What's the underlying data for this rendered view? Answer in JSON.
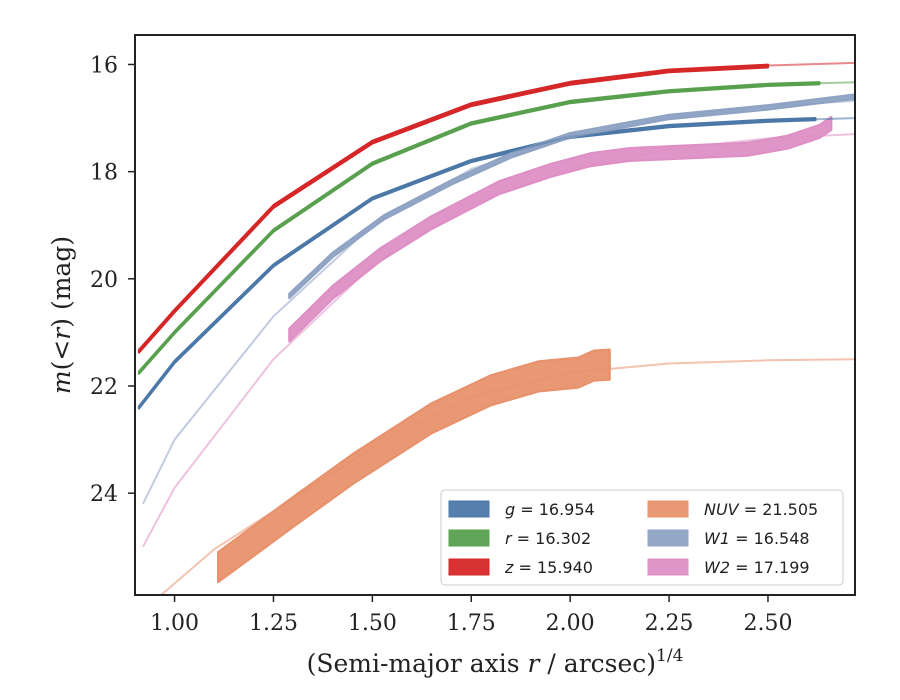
{
  "chart_data": {
    "type": "line",
    "title": "",
    "xlabel": "(Semi-major axis r / arcsec)",
    "xlabel_parts": {
      "before": "(Semi-major axis ",
      "var": "r",
      "after": " / arcsec)",
      "sup": "1/4"
    },
    "ylabel": "m(<r) (mag)",
    "ylabel_parts": {
      "var": "m",
      "paren": "(<",
      "var2": "r",
      "close": ")",
      "unit": " (mag)"
    },
    "xlim": [
      0.9,
      2.72
    ],
    "ylim": [
      25.9,
      15.45
    ],
    "y_inverted": true,
    "xticks": [
      1.0,
      1.25,
      1.5,
      1.75,
      2.0,
      2.25,
      2.5
    ],
    "xtick_labels": [
      "1.00",
      "1.25",
      "1.50",
      "1.75",
      "2.00",
      "2.25",
      "2.50"
    ],
    "yticks": [
      16,
      18,
      20,
      22,
      24
    ],
    "ytick_labels": [
      "16",
      "18",
      "20",
      "22",
      "24"
    ],
    "grid": false,
    "legend_placement": "lower-right",
    "series": [
      {
        "name": "g",
        "legend_var": "g",
        "legend_value": "16.954",
        "color": "#4c78a8",
        "model": [
          [
            0.91,
            22.4
          ],
          [
            1.0,
            21.55
          ],
          [
            1.25,
            19.75
          ],
          [
            1.5,
            18.5
          ],
          [
            1.75,
            17.8
          ],
          [
            2.0,
            17.35
          ],
          [
            2.25,
            17.15
          ],
          [
            2.5,
            17.05
          ],
          [
            2.72,
            17.0
          ]
        ],
        "measured": [
          [
            0.91,
            22.4
          ],
          [
            1.0,
            21.55
          ],
          [
            1.25,
            19.75
          ],
          [
            1.5,
            18.5
          ],
          [
            1.75,
            17.8
          ],
          [
            2.0,
            17.35
          ],
          [
            2.25,
            17.15
          ],
          [
            2.5,
            17.05
          ],
          [
            2.62,
            17.02
          ]
        ],
        "band_halfwidth": 0.02
      },
      {
        "name": "r",
        "legend_var": "r",
        "legend_value": "16.302",
        "color": "#59a14f",
        "model": [
          [
            0.91,
            21.75
          ],
          [
            1.0,
            21.0
          ],
          [
            1.25,
            19.1
          ],
          [
            1.5,
            17.85
          ],
          [
            1.75,
            17.1
          ],
          [
            2.0,
            16.7
          ],
          [
            2.25,
            16.5
          ],
          [
            2.5,
            16.38
          ],
          [
            2.72,
            16.33
          ]
        ],
        "measured": [
          [
            0.91,
            21.75
          ],
          [
            1.0,
            21.0
          ],
          [
            1.25,
            19.1
          ],
          [
            1.5,
            17.85
          ],
          [
            1.75,
            17.1
          ],
          [
            2.0,
            16.7
          ],
          [
            2.25,
            16.5
          ],
          [
            2.5,
            16.38
          ],
          [
            2.63,
            16.35
          ]
        ],
        "band_halfwidth": 0.02
      },
      {
        "name": "z",
        "legend_var": "z",
        "legend_value": "15.940",
        "color": "#d62728",
        "model": [
          [
            0.91,
            21.35
          ],
          [
            1.0,
            20.6
          ],
          [
            1.25,
            18.65
          ],
          [
            1.5,
            17.45
          ],
          [
            1.75,
            16.75
          ],
          [
            2.0,
            16.35
          ],
          [
            2.25,
            16.12
          ],
          [
            2.5,
            16.02
          ],
          [
            2.72,
            15.97
          ]
        ],
        "measured": [
          [
            0.91,
            21.35
          ],
          [
            1.0,
            20.6
          ],
          [
            1.25,
            18.65
          ],
          [
            1.5,
            17.45
          ],
          [
            1.75,
            16.75
          ],
          [
            2.0,
            16.35
          ],
          [
            2.25,
            16.12
          ],
          [
            2.5,
            16.03
          ]
        ],
        "band_halfwidth": 0.025
      },
      {
        "name": "NUV",
        "legend_var": "NUV",
        "legend_value": "21.505",
        "color": "#e8926d",
        "model": [
          [
            0.95,
            26.0
          ],
          [
            1.1,
            25.05
          ],
          [
            1.3,
            24.1
          ],
          [
            1.5,
            23.15
          ],
          [
            1.75,
            22.2
          ],
          [
            2.0,
            21.75
          ],
          [
            2.25,
            21.58
          ],
          [
            2.5,
            21.52
          ],
          [
            2.72,
            21.5
          ]
        ],
        "measured": [
          [
            1.11,
            25.38
          ],
          [
            1.3,
            24.35
          ],
          [
            1.45,
            23.55
          ],
          [
            1.65,
            22.6
          ],
          [
            1.8,
            22.08
          ],
          [
            1.92,
            21.82
          ],
          [
            2.02,
            21.75
          ],
          [
            2.06,
            21.62
          ],
          [
            2.1,
            21.6
          ]
        ],
        "band_halfwidth": 0.28
      },
      {
        "name": "W1",
        "legend_var": "W1",
        "legend_value": "16.548",
        "color": "#8fa3c4",
        "model": [
          [
            0.92,
            24.2
          ],
          [
            1.0,
            23.0
          ],
          [
            1.25,
            20.7
          ],
          [
            1.5,
            19.0
          ],
          [
            1.75,
            17.95
          ],
          [
            2.0,
            17.35
          ],
          [
            2.25,
            16.98
          ],
          [
            2.5,
            16.78
          ],
          [
            2.72,
            16.68
          ]
        ],
        "measured": [
          [
            1.29,
            20.32
          ],
          [
            1.4,
            19.55
          ],
          [
            1.53,
            18.85
          ],
          [
            1.7,
            18.2
          ],
          [
            1.85,
            17.7
          ],
          [
            2.0,
            17.32
          ],
          [
            2.25,
            16.98
          ],
          [
            2.5,
            16.8
          ],
          [
            2.72,
            16.6
          ]
        ],
        "band_halfwidth": 0.04
      },
      {
        "name": "W2",
        "legend_var": "W2",
        "legend_value": "17.199",
        "color": "#de8fc5",
        "model": [
          [
            0.92,
            25.0
          ],
          [
            1.0,
            23.9
          ],
          [
            1.25,
            21.5
          ],
          [
            1.5,
            19.75
          ],
          [
            1.75,
            18.6
          ],
          [
            2.0,
            17.95
          ],
          [
            2.25,
            17.58
          ],
          [
            2.5,
            17.38
          ],
          [
            2.72,
            17.3
          ]
        ],
        "measured": [
          [
            1.29,
            21.05
          ],
          [
            1.4,
            20.25
          ],
          [
            1.52,
            19.55
          ],
          [
            1.65,
            18.95
          ],
          [
            1.82,
            18.3
          ],
          [
            1.95,
            17.98
          ],
          [
            2.05,
            17.78
          ],
          [
            2.15,
            17.68
          ],
          [
            2.3,
            17.63
          ],
          [
            2.45,
            17.58
          ],
          [
            2.55,
            17.45
          ],
          [
            2.63,
            17.25
          ],
          [
            2.66,
            17.1
          ]
        ],
        "band_halfwidth": 0.12
      }
    ]
  }
}
